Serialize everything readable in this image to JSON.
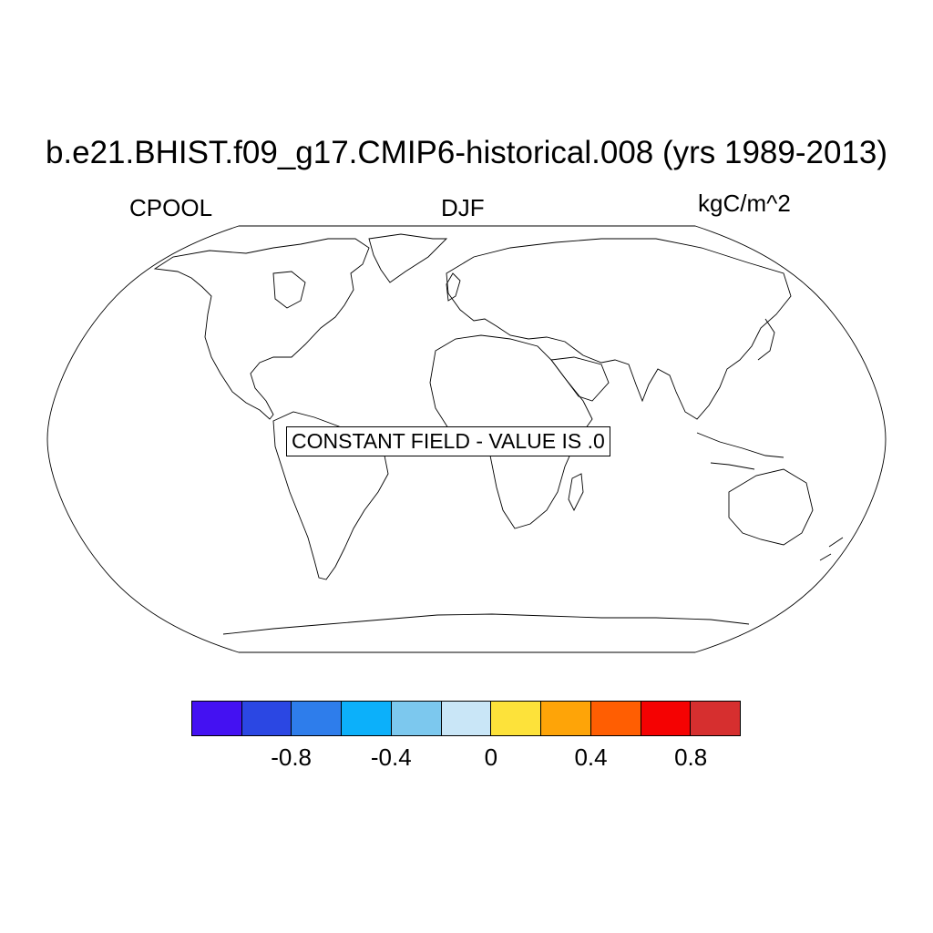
{
  "title": "b.e21.BHIST.f09_g17.CMIP6-historical.008 (yrs 1989-2013)",
  "subtitle_left": "CPOOL",
  "subtitle_center": "DJF",
  "subtitle_right": "kgC/m^2",
  "notice": "CONSTANT FIELD - VALUE IS .0",
  "projection": "Robinson (global)",
  "field_value": 0.0,
  "colorbar": {
    "colors": [
      "#4411f2",
      "#2b47e3",
      "#2e7deb",
      "#0cb0fa",
      "#7cc8ee",
      "#c9e6f7",
      "#fde23a",
      "#fea408",
      "#ff5e02",
      "#f50202",
      "#d62f2f"
    ],
    "boundaries": [
      -1.0,
      -0.8,
      -0.6,
      -0.4,
      -0.2,
      0,
      0.2,
      0.4,
      0.6,
      0.8,
      1.0
    ],
    "tick_labels": [
      "-0.8",
      "-0.4",
      "0",
      "0.4",
      "0.8"
    ]
  }
}
